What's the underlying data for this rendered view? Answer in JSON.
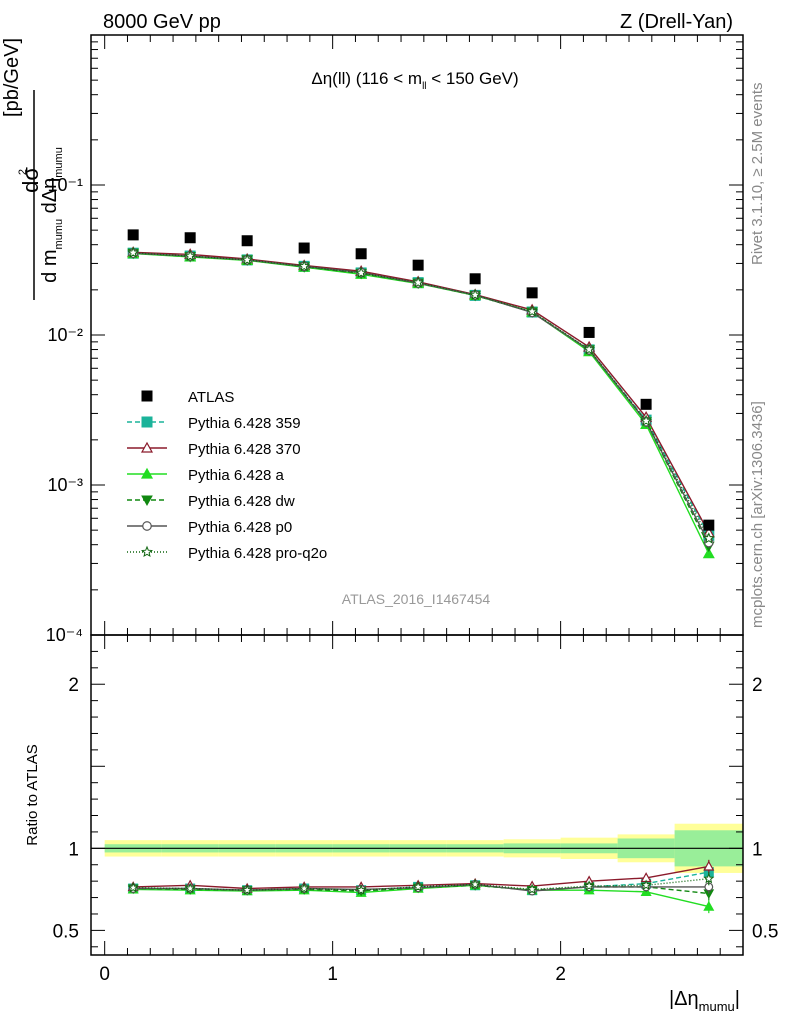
{
  "header": {
    "left": "8000 GeV pp",
    "right": "Z (Drell-Yan)"
  },
  "side_text": {
    "rivet": "Rivet 3.1.10, ≥ 2.5M events",
    "mcplots": "mcplots.cern.ch [arXiv:1306.3436]"
  },
  "chart_data": {
    "type": "scatter",
    "title": "Δη(ll) (116 < m_ll < 150 GeV)",
    "watermark": "ATLAS_2016_I1467454",
    "xlabel": "|Δη_mumu|",
    "ylabel": "d²σ / d m_mumu dΔη_mumu [pb/GeV]",
    "ratio_ylabel": "Ratio to ATLAS",
    "x_bins": [
      [
        0,
        0.25
      ],
      [
        0.25,
        0.5
      ],
      [
        0.5,
        0.75
      ],
      [
        0.75,
        1.0
      ],
      [
        1.0,
        1.25
      ],
      [
        1.25,
        1.5
      ],
      [
        1.5,
        1.75
      ],
      [
        1.75,
        2.0
      ],
      [
        2.0,
        2.25
      ],
      [
        2.25,
        2.5
      ],
      [
        2.5,
        2.8
      ]
    ],
    "x": [
      0.125,
      0.375,
      0.625,
      0.875,
      1.125,
      1.375,
      1.625,
      1.875,
      2.125,
      2.375,
      2.65
    ],
    "xlim": [
      -0.06,
      2.8
    ],
    "xticks": [
      "0",
      "1",
      "2"
    ],
    "main_ylim": [
      0.0001,
      1
    ],
    "main_yscale": "log",
    "main_yticks": [
      "10⁻⁴",
      "10⁻³",
      "10⁻²",
      "10⁻¹"
    ],
    "ratio_ylim": [
      0.35,
      2.3
    ],
    "ratio_yticks": [
      "0.5",
      "1",
      "2"
    ],
    "data": {
      "name": "ATLAS",
      "values": [
        0.0465,
        0.0445,
        0.0425,
        0.038,
        0.0348,
        0.0292,
        0.0237,
        0.0191,
        0.0104,
        0.00345,
        0.00054
      ]
    },
    "ratio_band": {
      "stat": [
        0.025,
        0.025,
        0.025,
        0.025,
        0.025,
        0.025,
        0.025,
        0.03,
        0.03,
        0.06,
        0.11
      ],
      "total": [
        0.05,
        0.05,
        0.05,
        0.05,
        0.05,
        0.05,
        0.05,
        0.055,
        0.065,
        0.085,
        0.15
      ]
    },
    "series": [
      {
        "name": "Pythia 6.428 359",
        "color": "#1bb39a",
        "dash": "5,3",
        "marker": "square",
        "ratio": [
          0.755,
          0.755,
          0.745,
          0.755,
          0.745,
          0.765,
          0.775,
          0.745,
          0.765,
          0.785,
          0.855
        ]
      },
      {
        "name": "Pythia 6.428 370",
        "color": "#8b1a2b",
        "dash": "",
        "marker": "triangle-open",
        "ratio": [
          0.765,
          0.775,
          0.755,
          0.765,
          0.765,
          0.775,
          0.785,
          0.77,
          0.8,
          0.82,
          0.89
        ]
      },
      {
        "name": "Pythia 6.428 a",
        "color": "#22dd22",
        "dash": "",
        "marker": "triangle",
        "ratio": [
          0.75,
          0.745,
          0.74,
          0.745,
          0.73,
          0.755,
          0.775,
          0.745,
          0.745,
          0.735,
          0.645
        ]
      },
      {
        "name": "Pythia 6.428 dw",
        "color": "#118811",
        "dash": "5,3",
        "marker": "triangle-down",
        "ratio": [
          0.755,
          0.75,
          0.745,
          0.75,
          0.74,
          0.76,
          0.775,
          0.745,
          0.765,
          0.765,
          0.725
        ]
      },
      {
        "name": "Pythia 6.428 p0",
        "color": "#555555",
        "dash": "",
        "marker": "circle-open",
        "ratio": [
          0.755,
          0.755,
          0.745,
          0.755,
          0.75,
          0.76,
          0.78,
          0.74,
          0.765,
          0.765,
          0.765
        ]
      },
      {
        "name": "Pythia 6.428 pro-q2o",
        "color": "#116611",
        "dash": "1,2",
        "marker": "star-open",
        "ratio": [
          0.76,
          0.755,
          0.745,
          0.755,
          0.745,
          0.765,
          0.78,
          0.75,
          0.77,
          0.775,
          0.815
        ]
      }
    ]
  }
}
